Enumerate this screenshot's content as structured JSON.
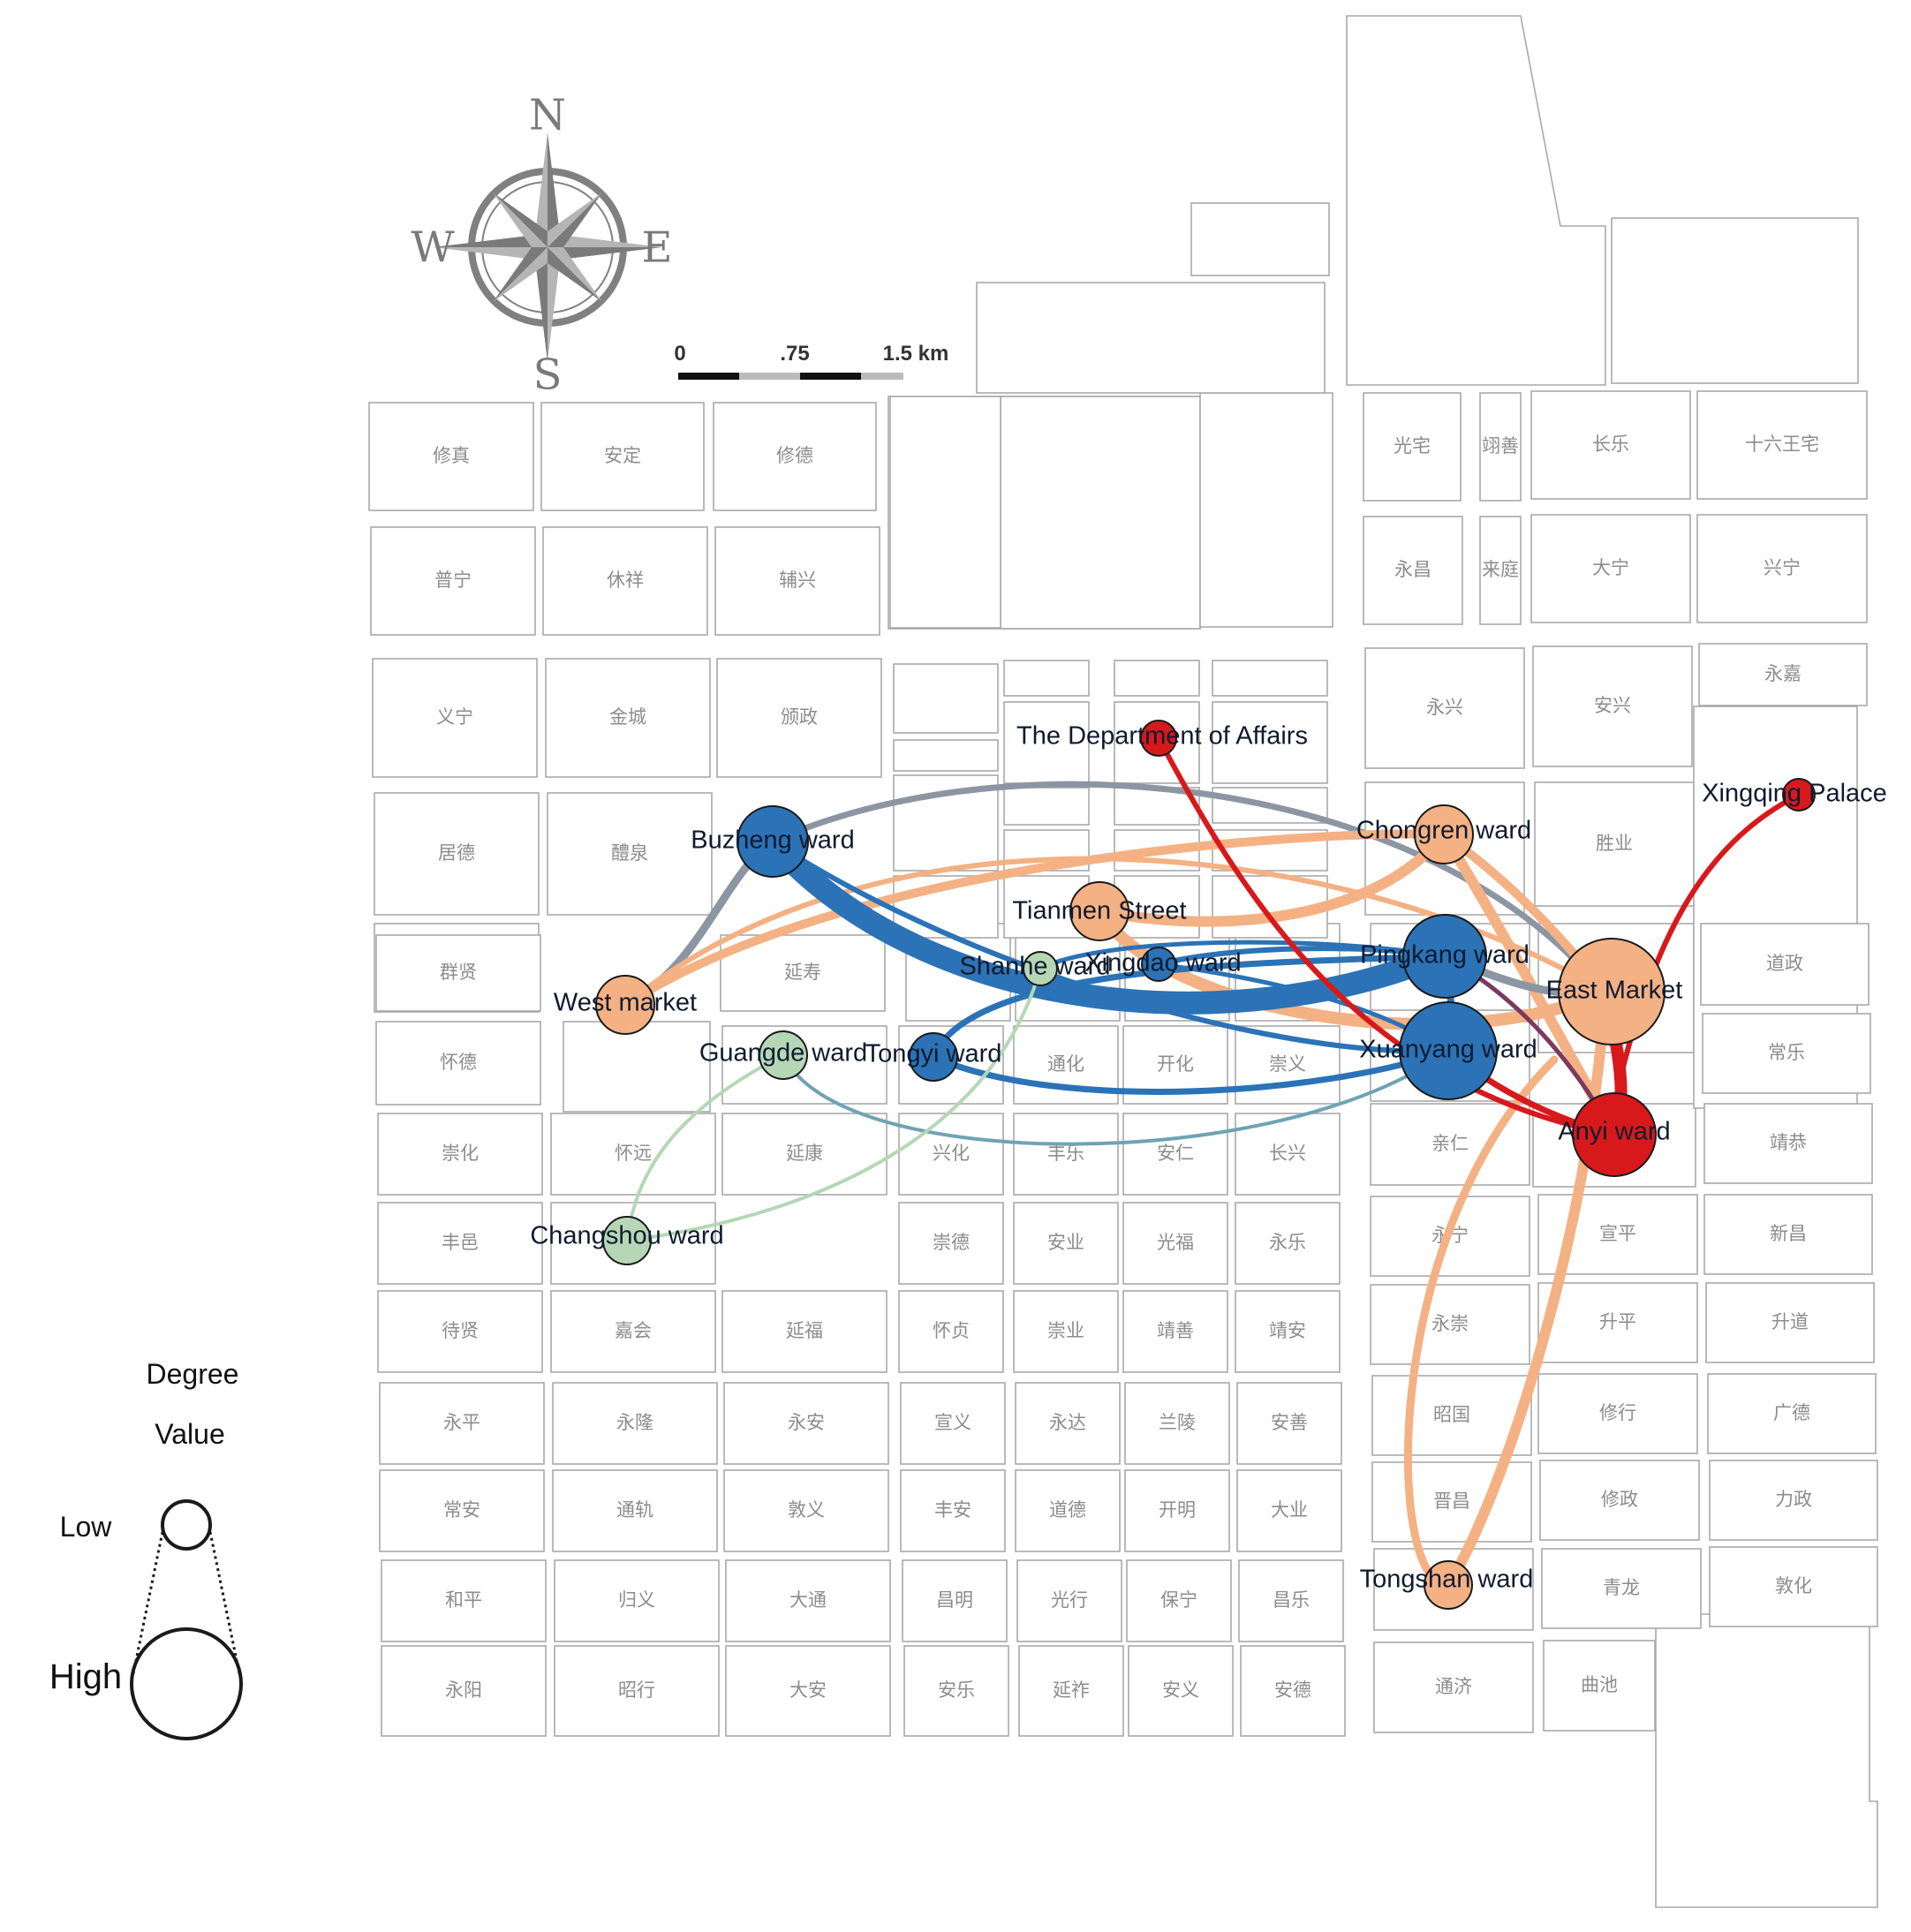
{
  "compass": {
    "n": "N",
    "s": "S",
    "e": "E",
    "w": "W"
  },
  "scale_bar": {
    "labels": [
      "0",
      ".75",
      "1.5 km"
    ]
  },
  "legend": {
    "title_line1": "Degree",
    "title_line2": "Value",
    "low": "Low",
    "high": "High"
  },
  "colors": {
    "red": "#d7191c",
    "orange": "#f4b183",
    "blue": "#2b73b6",
    "green": "#b5d7b5",
    "gray": "#8c96a3",
    "teal": "#6fa3b4",
    "purple": "#7b3a5e"
  },
  "wards": [
    {
      "id": "xiuzhen",
      "name": "修真"
    },
    {
      "id": "anding",
      "name": "安定"
    },
    {
      "id": "xiude",
      "name": "修德"
    },
    {
      "id": "puning",
      "name": "普宁"
    },
    {
      "id": "xiuxiang",
      "name": "休祥"
    },
    {
      "id": "fuxing",
      "name": "辅兴"
    },
    {
      "id": "yining",
      "name": "义宁"
    },
    {
      "id": "jincheng",
      "name": "金城"
    },
    {
      "id": "songzheng",
      "name": "颁政"
    },
    {
      "id": "jude",
      "name": "居德"
    },
    {
      "id": "liquan",
      "name": "醴泉"
    },
    {
      "id": "qunxian",
      "name": "群贤"
    },
    {
      "id": "yanshou",
      "name": "延寿"
    },
    {
      "id": "huaide",
      "name": "怀德"
    },
    {
      "id": "chonghua",
      "name": "崇化"
    },
    {
      "id": "huaiyuan",
      "name": "怀远"
    },
    {
      "id": "yankang",
      "name": "延康"
    },
    {
      "id": "xinghua",
      "name": "兴化"
    },
    {
      "id": "fengle",
      "name": "丰乐"
    },
    {
      "id": "anren",
      "name": "安仁"
    },
    {
      "id": "changxing",
      "name": "长兴"
    },
    {
      "id": "fengyi",
      "name": "丰邑"
    },
    {
      "id": "chongxian",
      "name": "崇贤"
    },
    {
      "id": "chongde",
      "name": "崇德"
    },
    {
      "id": "anye",
      "name": "安业"
    },
    {
      "id": "guangfu",
      "name": "光福"
    },
    {
      "id": "yongle",
      "name": "永乐"
    },
    {
      "id": "daixian",
      "name": "待贤"
    },
    {
      "id": "jiahui",
      "name": "嘉会"
    },
    {
      "id": "yanfu",
      "name": "延福"
    },
    {
      "id": "huaizhen",
      "name": "怀贞"
    },
    {
      "id": "chongye",
      "name": "崇业"
    },
    {
      "id": "jingshan",
      "name": "靖善"
    },
    {
      "id": "jingan",
      "name": "靖安"
    },
    {
      "id": "yongping",
      "name": "永平"
    },
    {
      "id": "yonglong",
      "name": "永隆"
    },
    {
      "id": "yongan",
      "name": "永安"
    },
    {
      "id": "xuanyi",
      "name": "宣义"
    },
    {
      "id": "yongda",
      "name": "永达"
    },
    {
      "id": "lanling",
      "name": "兰陵"
    },
    {
      "id": "anshan",
      "name": "安善"
    },
    {
      "id": "changan",
      "name": "常安"
    },
    {
      "id": "tonggui",
      "name": "通轨"
    },
    {
      "id": "dunyi",
      "name": "敦义"
    },
    {
      "id": "fengan",
      "name": "丰安"
    },
    {
      "id": "daode",
      "name": "道德"
    },
    {
      "id": "kaiming",
      "name": "开明"
    },
    {
      "id": "daye",
      "name": "大业"
    },
    {
      "id": "heping",
      "name": "和平"
    },
    {
      "id": "guiyi",
      "name": "归义"
    },
    {
      "id": "datong",
      "name": "大通"
    },
    {
      "id": "changming",
      "name": "昌明"
    },
    {
      "id": "guangxing",
      "name": "光行"
    },
    {
      "id": "baoning",
      "name": "保宁"
    },
    {
      "id": "changle",
      "name": "昌乐"
    },
    {
      "id": "yongyang",
      "name": "永阳"
    },
    {
      "id": "zhaoxing",
      "name": "昭行"
    },
    {
      "id": "daan",
      "name": "大安"
    },
    {
      "id": "anle",
      "name": "安乐"
    },
    {
      "id": "yanzuo",
      "name": "延祚"
    },
    {
      "id": "anyi2",
      "name": "安义"
    },
    {
      "id": "ande",
      "name": "安德"
    },
    {
      "id": "tonghua",
      "name": "通化"
    },
    {
      "id": "kaihua",
      "name": "开化"
    },
    {
      "id": "chongyi",
      "name": "崇义"
    },
    {
      "id": "guangzhai",
      "name": "光宅"
    },
    {
      "id": "yishan",
      "name": "翊善"
    },
    {
      "id": "changle2",
      "name": "长乐"
    },
    {
      "id": "shiliu",
      "name": "十六王宅"
    },
    {
      "id": "yongchang",
      "name": "永昌"
    },
    {
      "id": "laiting",
      "name": "来庭"
    },
    {
      "id": "daning",
      "name": "大宁"
    },
    {
      "id": "xingning",
      "name": "兴宁"
    },
    {
      "id": "yongjia",
      "name": "永嘉"
    },
    {
      "id": "yongxing",
      "name": "永兴"
    },
    {
      "id": "anxing",
      "name": "安兴"
    },
    {
      "id": "shengye",
      "name": "胜业"
    },
    {
      "id": "daozheng",
      "name": "道政"
    },
    {
      "id": "changle3",
      "name": "常乐"
    },
    {
      "id": "qinren",
      "name": "亲仁"
    },
    {
      "id": "jinggong",
      "name": "靖恭"
    },
    {
      "id": "yongning",
      "name": "永宁"
    },
    {
      "id": "xuanping",
      "name": "宣平"
    },
    {
      "id": "xinchang",
      "name": "新昌"
    },
    {
      "id": "yongchong",
      "name": "永崇"
    },
    {
      "id": "shengping",
      "name": "升平"
    },
    {
      "id": "shengdao",
      "name": "升道"
    },
    {
      "id": "zhaoguo",
      "name": "昭国"
    },
    {
      "id": "xiuxing",
      "name": "修行"
    },
    {
      "id": "guangde",
      "name": "广德"
    },
    {
      "id": "jinchang",
      "name": "晋昌"
    },
    {
      "id": "xiuzheng",
      "name": "修政"
    },
    {
      "id": "lizheng",
      "name": "力政"
    },
    {
      "id": "qinglong",
      "name": "青龙"
    },
    {
      "id": "dunhua",
      "name": "敦化"
    },
    {
      "id": "tongji",
      "name": "通济"
    },
    {
      "id": "quchi",
      "name": "曲池"
    }
  ],
  "nodes": [
    {
      "id": "dept",
      "label": "The Department of Affairs",
      "color": "red",
      "size": "small"
    },
    {
      "id": "xingqing",
      "label": "Xingqing Palace",
      "color": "red",
      "size": "small"
    },
    {
      "id": "buzheng",
      "label": "Buzheng ward",
      "color": "blue",
      "size": "large"
    },
    {
      "id": "chongren",
      "label": "Chongren ward",
      "color": "orange",
      "size": "medium"
    },
    {
      "id": "tianmen",
      "label": "Tianmen Street",
      "color": "orange",
      "size": "medium"
    },
    {
      "id": "shanhe",
      "label": "Shanhe ward",
      "color": "green",
      "size": "small"
    },
    {
      "id": "xingdao",
      "label": "Xingdao ward",
      "color": "blue",
      "size": "small"
    },
    {
      "id": "pingkang",
      "label": "Pingkang ward",
      "color": "blue",
      "size": "large"
    },
    {
      "id": "eastmarket",
      "label": "East Market",
      "color": "orange",
      "size": "xlarge"
    },
    {
      "id": "westmarket",
      "label": "West market",
      "color": "orange",
      "size": "medium"
    },
    {
      "id": "guangde",
      "label": "Guangde ward",
      "color": "green",
      "size": "medium"
    },
    {
      "id": "tongyi",
      "label": "Tongyi ward",
      "color": "blue",
      "size": "medium"
    },
    {
      "id": "xuanyang",
      "label": "Xuanyang ward",
      "color": "blue",
      "size": "xlarge"
    },
    {
      "id": "anyi",
      "label": "Anyi ward",
      "color": "red",
      "size": "large"
    },
    {
      "id": "changshou",
      "label": "Changshou ward",
      "color": "green",
      "size": "medium"
    },
    {
      "id": "tongshan",
      "label": "Tongshan ward",
      "color": "orange",
      "size": "small"
    }
  ],
  "edges": [
    {
      "from": "buzheng",
      "to": "eastmarket",
      "color": "gray",
      "weight": "thin"
    },
    {
      "from": "buzheng",
      "to": "westmarket",
      "color": "gray",
      "weight": "thin"
    },
    {
      "from": "buzheng",
      "to": "pingkang",
      "color": "blue",
      "weight": "heavy"
    },
    {
      "from": "buzheng",
      "to": "xuanyang",
      "color": "blue",
      "weight": "thin"
    },
    {
      "from": "westmarket",
      "to": "eastmarket",
      "color": "orange",
      "weight": "thin"
    },
    {
      "from": "westmarket",
      "to": "chongren",
      "color": "orange",
      "weight": "medium"
    },
    {
      "from": "tianmen",
      "to": "chongren",
      "color": "orange",
      "weight": "medium"
    },
    {
      "from": "tianmen",
      "to": "eastmarket",
      "color": "orange",
      "weight": "medium"
    },
    {
      "from": "chongren",
      "to": "anyi",
      "color": "orange",
      "weight": "medium"
    },
    {
      "from": "chongren",
      "to": "eastmarket",
      "color": "orange",
      "weight": "medium"
    },
    {
      "from": "eastmarket",
      "to": "tongshan",
      "color": "orange",
      "weight": "medium"
    },
    {
      "from": "chongren",
      "to": "tongshan",
      "color": "orange",
      "weight": "medium"
    },
    {
      "from": "dept",
      "to": "anyi",
      "color": "red",
      "weight": "medium"
    },
    {
      "from": "xingqing",
      "to": "anyi",
      "color": "red",
      "weight": "medium"
    },
    {
      "from": "eastmarket",
      "to": "anyi",
      "color": "red",
      "weight": "heavy"
    },
    {
      "from": "xuanyang",
      "to": "anyi",
      "color": "red",
      "weight": "medium"
    },
    {
      "from": "pingkang",
      "to": "anyi",
      "color": "purple",
      "weight": "thin"
    },
    {
      "from": "tongyi",
      "to": "pingkang",
      "color": "blue",
      "weight": "medium"
    },
    {
      "from": "tongyi",
      "to": "xuanyang",
      "color": "blue",
      "weight": "medium"
    },
    {
      "from": "xingdao",
      "to": "pingkang",
      "color": "blue",
      "weight": "medium"
    },
    {
      "from": "xingdao",
      "to": "xuanyang",
      "color": "blue",
      "weight": "medium"
    },
    {
      "from": "shanhe",
      "to": "pingkang",
      "color": "blue",
      "weight": "thin"
    },
    {
      "from": "pingkang",
      "to": "xuanyang",
      "color": "blue",
      "weight": "medium"
    },
    {
      "from": "guangde",
      "to": "xuanyang",
      "color": "teal",
      "weight": "thin"
    },
    {
      "from": "guangde",
      "to": "changshou",
      "color": "green",
      "weight": "thin"
    },
    {
      "from": "shanhe",
      "to": "changshou",
      "color": "green",
      "weight": "thin"
    },
    {
      "from": "pingkang",
      "to": "eastmarket",
      "color": "gray",
      "weight": "medium"
    }
  ]
}
